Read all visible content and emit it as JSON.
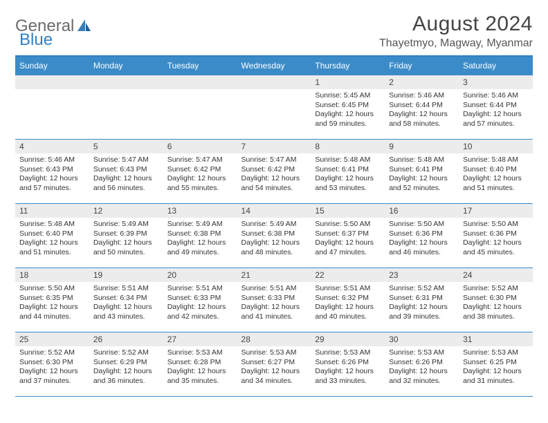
{
  "logo": {
    "part1": "General",
    "part2": "Blue"
  },
  "title": "August 2024",
  "location": "Thayetmyo, Magway, Myanmar",
  "weekdays": [
    "Sunday",
    "Monday",
    "Tuesday",
    "Wednesday",
    "Thursday",
    "Friday",
    "Saturday"
  ],
  "colors": {
    "header_bg": "#3b8bc8",
    "header_border": "#2f7fc2",
    "cell_border": "#3b8bc8",
    "daynum_bg": "#ececec",
    "text": "#333333",
    "logo_gray": "#6b6b6b",
    "logo_blue": "#2f7fc2"
  },
  "startOffset": 4,
  "days": [
    {
      "n": 1,
      "sr": "5:45 AM",
      "ss": "6:45 PM",
      "dlh": 12,
      "dlm": 59
    },
    {
      "n": 2,
      "sr": "5:46 AM",
      "ss": "6:44 PM",
      "dlh": 12,
      "dlm": 58
    },
    {
      "n": 3,
      "sr": "5:46 AM",
      "ss": "6:44 PM",
      "dlh": 12,
      "dlm": 57
    },
    {
      "n": 4,
      "sr": "5:46 AM",
      "ss": "6:43 PM",
      "dlh": 12,
      "dlm": 57
    },
    {
      "n": 5,
      "sr": "5:47 AM",
      "ss": "6:43 PM",
      "dlh": 12,
      "dlm": 56
    },
    {
      "n": 6,
      "sr": "5:47 AM",
      "ss": "6:42 PM",
      "dlh": 12,
      "dlm": 55
    },
    {
      "n": 7,
      "sr": "5:47 AM",
      "ss": "6:42 PM",
      "dlh": 12,
      "dlm": 54
    },
    {
      "n": 8,
      "sr": "5:48 AM",
      "ss": "6:41 PM",
      "dlh": 12,
      "dlm": 53
    },
    {
      "n": 9,
      "sr": "5:48 AM",
      "ss": "6:41 PM",
      "dlh": 12,
      "dlm": 52
    },
    {
      "n": 10,
      "sr": "5:48 AM",
      "ss": "6:40 PM",
      "dlh": 12,
      "dlm": 51
    },
    {
      "n": 11,
      "sr": "5:48 AM",
      "ss": "6:40 PM",
      "dlh": 12,
      "dlm": 51
    },
    {
      "n": 12,
      "sr": "5:49 AM",
      "ss": "6:39 PM",
      "dlh": 12,
      "dlm": 50
    },
    {
      "n": 13,
      "sr": "5:49 AM",
      "ss": "6:38 PM",
      "dlh": 12,
      "dlm": 49
    },
    {
      "n": 14,
      "sr": "5:49 AM",
      "ss": "6:38 PM",
      "dlh": 12,
      "dlm": 48
    },
    {
      "n": 15,
      "sr": "5:50 AM",
      "ss": "6:37 PM",
      "dlh": 12,
      "dlm": 47
    },
    {
      "n": 16,
      "sr": "5:50 AM",
      "ss": "6:36 PM",
      "dlh": 12,
      "dlm": 46
    },
    {
      "n": 17,
      "sr": "5:50 AM",
      "ss": "6:36 PM",
      "dlh": 12,
      "dlm": 45
    },
    {
      "n": 18,
      "sr": "5:50 AM",
      "ss": "6:35 PM",
      "dlh": 12,
      "dlm": 44
    },
    {
      "n": 19,
      "sr": "5:51 AM",
      "ss": "6:34 PM",
      "dlh": 12,
      "dlm": 43
    },
    {
      "n": 20,
      "sr": "5:51 AM",
      "ss": "6:33 PM",
      "dlh": 12,
      "dlm": 42
    },
    {
      "n": 21,
      "sr": "5:51 AM",
      "ss": "6:33 PM",
      "dlh": 12,
      "dlm": 41
    },
    {
      "n": 22,
      "sr": "5:51 AM",
      "ss": "6:32 PM",
      "dlh": 12,
      "dlm": 40
    },
    {
      "n": 23,
      "sr": "5:52 AM",
      "ss": "6:31 PM",
      "dlh": 12,
      "dlm": 39
    },
    {
      "n": 24,
      "sr": "5:52 AM",
      "ss": "6:30 PM",
      "dlh": 12,
      "dlm": 38
    },
    {
      "n": 25,
      "sr": "5:52 AM",
      "ss": "6:30 PM",
      "dlh": 12,
      "dlm": 37
    },
    {
      "n": 26,
      "sr": "5:52 AM",
      "ss": "6:29 PM",
      "dlh": 12,
      "dlm": 36
    },
    {
      "n": 27,
      "sr": "5:53 AM",
      "ss": "6:28 PM",
      "dlh": 12,
      "dlm": 35
    },
    {
      "n": 28,
      "sr": "5:53 AM",
      "ss": "6:27 PM",
      "dlh": 12,
      "dlm": 34
    },
    {
      "n": 29,
      "sr": "5:53 AM",
      "ss": "6:26 PM",
      "dlh": 12,
      "dlm": 33
    },
    {
      "n": 30,
      "sr": "5:53 AM",
      "ss": "6:26 PM",
      "dlh": 12,
      "dlm": 32
    },
    {
      "n": 31,
      "sr": "5:53 AM",
      "ss": "6:25 PM",
      "dlh": 12,
      "dlm": 31
    }
  ],
  "labels": {
    "sunrise": "Sunrise:",
    "sunset": "Sunset:",
    "daylight": "Daylight:",
    "hours": "hours",
    "and": "and",
    "minutes": "minutes."
  }
}
